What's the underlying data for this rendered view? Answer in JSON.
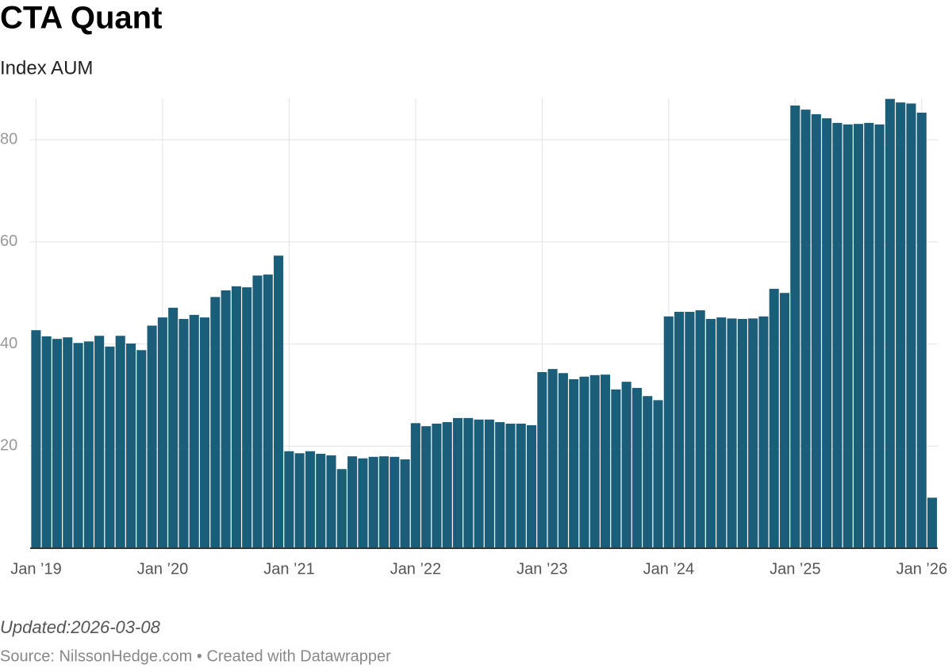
{
  "chart_data": {
    "type": "bar",
    "title": "CTA Quant",
    "subtitle": "Index AUM",
    "note": "Updated:2026-03-08",
    "source": "Source: NilssonHedge.com • Created with Datawrapper",
    "color": "#1b5e79",
    "grid": true,
    "x": [
      "2019-01",
      "2019-02",
      "2019-03",
      "2019-04",
      "2019-05",
      "2019-06",
      "2019-07",
      "2019-08",
      "2019-09",
      "2019-10",
      "2019-11",
      "2019-12",
      "2020-01",
      "2020-02",
      "2020-03",
      "2020-04",
      "2020-05",
      "2020-06",
      "2020-07",
      "2020-08",
      "2020-09",
      "2020-10",
      "2020-11",
      "2020-12",
      "2021-01",
      "2021-02",
      "2021-03",
      "2021-04",
      "2021-05",
      "2021-06",
      "2021-07",
      "2021-08",
      "2021-09",
      "2021-10",
      "2021-11",
      "2021-12",
      "2022-01",
      "2022-02",
      "2022-03",
      "2022-04",
      "2022-05",
      "2022-06",
      "2022-07",
      "2022-08",
      "2022-09",
      "2022-10",
      "2022-11",
      "2022-12",
      "2023-01",
      "2023-02",
      "2023-03",
      "2023-04",
      "2023-05",
      "2023-06",
      "2023-07",
      "2023-08",
      "2023-09",
      "2023-10",
      "2023-11",
      "2023-12",
      "2024-01",
      "2024-02",
      "2024-03",
      "2024-04",
      "2024-05",
      "2024-06",
      "2024-07",
      "2024-08",
      "2024-09",
      "2024-10",
      "2024-11",
      "2024-12",
      "2025-01",
      "2025-02",
      "2025-03",
      "2025-04",
      "2025-05",
      "2025-06",
      "2025-07",
      "2025-08",
      "2025-09",
      "2025-10",
      "2025-11",
      "2025-12",
      "2026-01",
      "2026-02"
    ],
    "values": [
      42.7,
      41.5,
      41.0,
      41.3,
      40.2,
      40.5,
      41.6,
      39.5,
      41.6,
      40.1,
      38.8,
      43.6,
      45.2,
      47.1,
      44.9,
      45.7,
      45.2,
      49.2,
      50.5,
      51.3,
      51.1,
      53.4,
      53.6,
      57.3,
      19.0,
      18.6,
      19.0,
      18.5,
      18.2,
      15.5,
      18.0,
      17.6,
      17.9,
      18.0,
      17.9,
      17.4,
      24.5,
      23.9,
      24.4,
      24.7,
      25.5,
      25.5,
      25.2,
      25.2,
      24.7,
      24.4,
      24.4,
      24.1,
      34.5,
      35.1,
      34.3,
      33.1,
      33.6,
      33.9,
      34.0,
      31.1,
      32.6,
      31.4,
      29.8,
      29.0,
      45.4,
      46.3,
      46.3,
      46.6,
      44.9,
      45.2,
      45.0,
      44.9,
      45.0,
      45.4,
      50.8,
      50.0,
      86.7,
      85.9,
      85.0,
      84.2,
      83.3,
      83.0,
      83.1,
      83.3,
      83.0,
      88.0,
      87.3,
      87.1,
      85.3,
      9.9
    ],
    "ylim": [
      0,
      88.1
    ],
    "yticks": [
      20,
      40,
      60,
      80
    ],
    "xticks": [
      {
        "value": "2019-01",
        "label": "Jan ’19"
      },
      {
        "value": "2020-01",
        "label": "Jan ’20"
      },
      {
        "value": "2021-01",
        "label": "Jan ’21"
      },
      {
        "value": "2022-01",
        "label": "Jan ’22"
      },
      {
        "value": "2023-01",
        "label": "Jan ’23"
      },
      {
        "value": "2024-01",
        "label": "Jan ’24"
      },
      {
        "value": "2025-01",
        "label": "Jan ’25"
      },
      {
        "value": "2026-01",
        "label": "Jan ’26"
      }
    ]
  }
}
